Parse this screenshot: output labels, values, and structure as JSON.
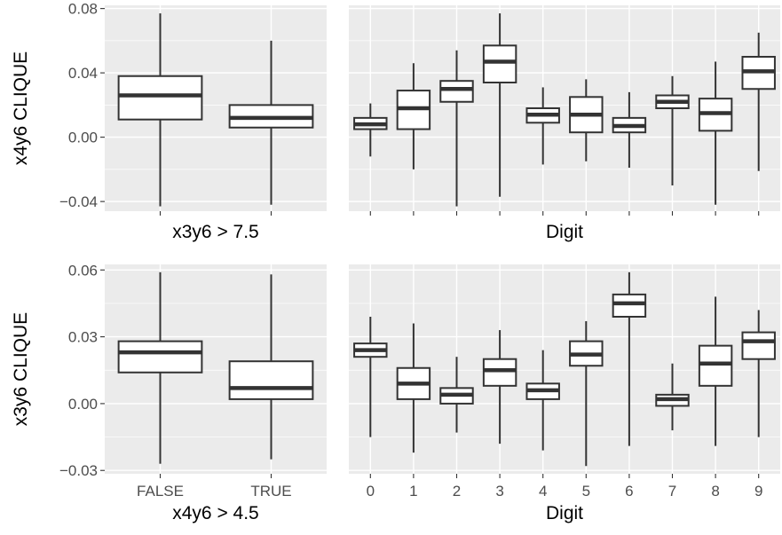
{
  "chart_data": [
    {
      "type": "boxplot",
      "row": 0,
      "col": 0,
      "xlabel": "x3y6 > 7.5",
      "ylabel": "x4y6 CLIQUE",
      "ylim": [
        -0.046,
        0.082
      ],
      "yticks": [
        -0.04,
        0.0,
        0.04,
        0.08
      ],
      "ytick_labels": [
        "−0.04",
        "0.00",
        "0.04",
        "0.08"
      ],
      "categories": [
        "FALSE",
        "TRUE"
      ],
      "show_x_tick_labels": false,
      "boxes": [
        {
          "category": "FALSE",
          "min": -0.043,
          "q1": 0.011,
          "median": 0.026,
          "q3": 0.038,
          "max": 0.077
        },
        {
          "category": "TRUE",
          "min": -0.042,
          "q1": 0.006,
          "median": 0.012,
          "q3": 0.02,
          "max": 0.06
        }
      ]
    },
    {
      "type": "boxplot",
      "row": 0,
      "col": 1,
      "xlabel": "Digit",
      "ylabel": "",
      "ylim": [
        -0.046,
        0.082
      ],
      "yticks": [
        -0.04,
        0.0,
        0.04,
        0.08
      ],
      "categories": [
        "0",
        "1",
        "2",
        "3",
        "4",
        "5",
        "6",
        "7",
        "8",
        "9"
      ],
      "show_x_tick_labels": false,
      "boxes": [
        {
          "category": "0",
          "min": -0.012,
          "q1": 0.005,
          "median": 0.008,
          "q3": 0.012,
          "max": 0.021
        },
        {
          "category": "1",
          "min": -0.02,
          "q1": 0.005,
          "median": 0.018,
          "q3": 0.029,
          "max": 0.046
        },
        {
          "category": "2",
          "min": -0.043,
          "q1": 0.022,
          "median": 0.03,
          "q3": 0.035,
          "max": 0.054
        },
        {
          "category": "3",
          "min": -0.037,
          "q1": 0.034,
          "median": 0.047,
          "q3": 0.057,
          "max": 0.077
        },
        {
          "category": "4",
          "min": -0.017,
          "q1": 0.009,
          "median": 0.014,
          "q3": 0.018,
          "max": 0.031
        },
        {
          "category": "5",
          "min": -0.015,
          "q1": 0.003,
          "median": 0.014,
          "q3": 0.025,
          "max": 0.036
        },
        {
          "category": "6",
          "min": -0.019,
          "q1": 0.003,
          "median": 0.007,
          "q3": 0.012,
          "max": 0.028
        },
        {
          "category": "7",
          "min": -0.03,
          "q1": 0.018,
          "median": 0.022,
          "q3": 0.026,
          "max": 0.038
        },
        {
          "category": "8",
          "min": -0.042,
          "q1": 0.004,
          "median": 0.015,
          "q3": 0.024,
          "max": 0.047
        },
        {
          "category": "9",
          "min": -0.021,
          "q1": 0.03,
          "median": 0.041,
          "q3": 0.05,
          "max": 0.065
        }
      ]
    },
    {
      "type": "boxplot",
      "row": 1,
      "col": 0,
      "xlabel": "x4y6 > 4.5",
      "ylabel": "x3y6 CLIQUE",
      "ylim": [
        -0.0315,
        0.0625
      ],
      "yticks": [
        -0.03,
        0.0,
        0.03,
        0.06
      ],
      "ytick_labels": [
        "−0.03",
        "0.00",
        "0.03",
        "0.06"
      ],
      "categories": [
        "FALSE",
        "TRUE"
      ],
      "show_x_tick_labels": true,
      "boxes": [
        {
          "category": "FALSE",
          "min": -0.027,
          "q1": 0.014,
          "median": 0.023,
          "q3": 0.028,
          "max": 0.059
        },
        {
          "category": "TRUE",
          "min": -0.025,
          "q1": 0.002,
          "median": 0.007,
          "q3": 0.019,
          "max": 0.058
        }
      ]
    },
    {
      "type": "boxplot",
      "row": 1,
      "col": 1,
      "xlabel": "Digit",
      "ylabel": "",
      "ylim": [
        -0.0315,
        0.0625
      ],
      "yticks": [
        -0.03,
        0.0,
        0.03,
        0.06
      ],
      "categories": [
        "0",
        "1",
        "2",
        "3",
        "4",
        "5",
        "6",
        "7",
        "8",
        "9"
      ],
      "show_x_tick_labels": true,
      "boxes": [
        {
          "category": "0",
          "min": -0.015,
          "q1": 0.021,
          "median": 0.024,
          "q3": 0.027,
          "max": 0.039
        },
        {
          "category": "1",
          "min": -0.022,
          "q1": 0.002,
          "median": 0.009,
          "q3": 0.016,
          "max": 0.036
        },
        {
          "category": "2",
          "min": -0.013,
          "q1": 0.0,
          "median": 0.004,
          "q3": 0.007,
          "max": 0.021
        },
        {
          "category": "3",
          "min": -0.018,
          "q1": 0.008,
          "median": 0.015,
          "q3": 0.02,
          "max": 0.033
        },
        {
          "category": "4",
          "min": -0.021,
          "q1": 0.002,
          "median": 0.006,
          "q3": 0.009,
          "max": 0.024
        },
        {
          "category": "5",
          "min": -0.028,
          "q1": 0.017,
          "median": 0.022,
          "q3": 0.028,
          "max": 0.037
        },
        {
          "category": "6",
          "min": -0.019,
          "q1": 0.039,
          "median": 0.045,
          "q3": 0.049,
          "max": 0.059
        },
        {
          "category": "7",
          "min": -0.012,
          "q1": -0.001,
          "median": 0.002,
          "q3": 0.004,
          "max": 0.018
        },
        {
          "category": "8",
          "min": -0.019,
          "q1": 0.008,
          "median": 0.018,
          "q3": 0.026,
          "max": 0.048
        },
        {
          "category": "9",
          "min": -0.015,
          "q1": 0.02,
          "median": 0.028,
          "q3": 0.032,
          "max": 0.042
        }
      ]
    }
  ]
}
